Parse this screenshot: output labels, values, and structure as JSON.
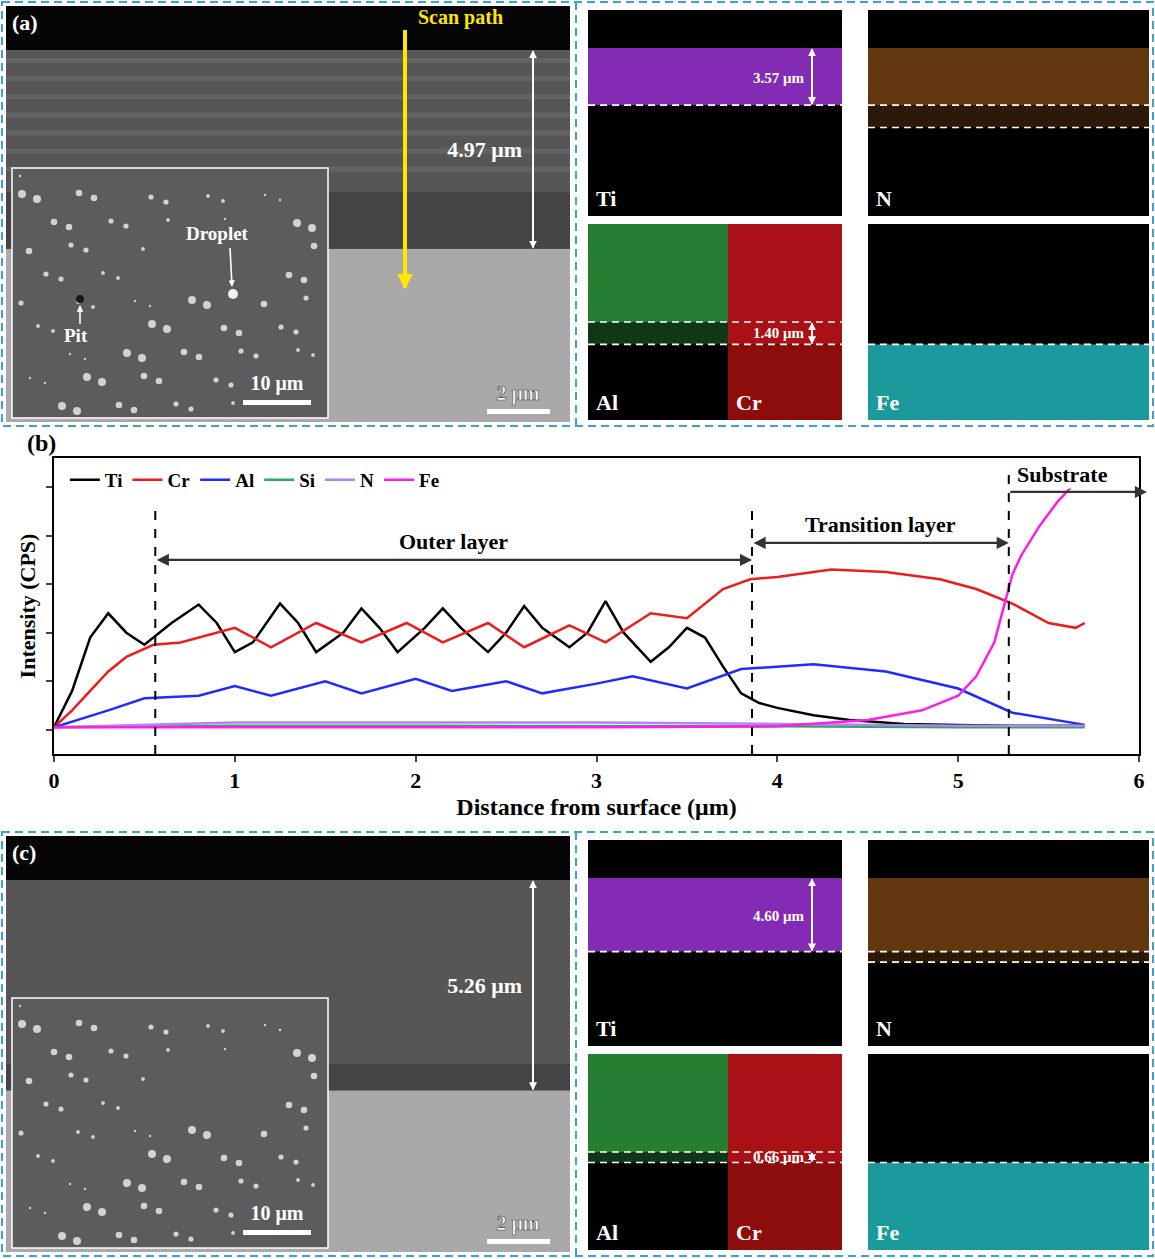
{
  "panels": [
    {
      "label": "(a)",
      "scan_path": "Scan path",
      "coating": {
        "value": 4.97,
        "label": "4.97 μm"
      },
      "scale_bar": "2 μm",
      "inset": {
        "annotations": [
          "Droplet",
          "Pit"
        ],
        "scale_bar": "10 μm"
      },
      "maps": {
        "elements": [
          "Ti",
          "N",
          "Al",
          "Cr",
          "Fe"
        ],
        "outer": {
          "value": 3.57,
          "label": "3.57 μm"
        },
        "transition": {
          "value": 1.4,
          "label": "1.40 μm"
        }
      }
    },
    {
      "label": "(c)",
      "coating": {
        "value": 5.26,
        "label": "5.26 μm"
      },
      "scale_bar": "2 μm",
      "inset": {
        "annotations": [],
        "scale_bar": "10 μm"
      },
      "maps": {
        "elements": [
          "Ti",
          "N",
          "Al",
          "Cr",
          "Fe"
        ],
        "outer": {
          "value": 4.6,
          "label": "4.60 μm"
        },
        "transition": {
          "value": 0.66,
          "label": "0.66 μm"
        }
      }
    }
  ],
  "chart_data": {
    "type": "line",
    "panel_label": "(b)",
    "x_label": "Distance from surface (μm)",
    "y_label": "Intensity (CPS)",
    "xlim": [
      0,
      6
    ],
    "xticks": [
      0,
      1,
      2,
      3,
      4,
      5,
      6
    ],
    "ylim": [
      -0.5,
      5.6
    ],
    "yticks": [
      0,
      1,
      2,
      3,
      4,
      5
    ],
    "tick_labels": "x",
    "grid": false,
    "legend": "upper left",
    "series": [
      {
        "name": "Ti",
        "color": "#000000",
        "x": [
          0,
          0.1,
          0.2,
          0.3,
          0.4,
          0.5,
          0.65,
          0.8,
          0.9,
          1.0,
          1.1,
          1.25,
          1.35,
          1.45,
          1.6,
          1.7,
          1.8,
          1.9,
          2.05,
          2.15,
          2.25,
          2.4,
          2.5,
          2.6,
          2.7,
          2.85,
          2.95,
          3.05,
          3.15,
          3.3,
          3.4,
          3.5,
          3.6,
          3.7,
          3.8,
          3.9,
          4.0,
          4.2,
          4.4,
          4.7,
          5.0,
          5.3,
          5.7
        ],
        "values": [
          0.05,
          0.8,
          1.9,
          2.4,
          2.0,
          1.75,
          2.2,
          2.58,
          2.2,
          1.6,
          1.8,
          2.6,
          2.2,
          1.6,
          2.0,
          2.5,
          2.1,
          1.6,
          2.1,
          2.5,
          2.1,
          1.6,
          2.0,
          2.55,
          2.1,
          1.7,
          2.0,
          2.65,
          2.0,
          1.4,
          1.7,
          2.1,
          1.9,
          1.3,
          0.75,
          0.55,
          0.45,
          0.3,
          0.2,
          0.12,
          0.1,
          0.08,
          0.08
        ]
      },
      {
        "name": "Cr",
        "color": "#ee1c1c",
        "x": [
          0,
          0.1,
          0.2,
          0.3,
          0.4,
          0.55,
          0.7,
          0.8,
          1.0,
          1.2,
          1.45,
          1.7,
          1.95,
          2.15,
          2.4,
          2.6,
          2.85,
          3.05,
          3.3,
          3.5,
          3.7,
          3.85,
          4.0,
          4.3,
          4.6,
          4.9,
          5.1,
          5.3,
          5.5,
          5.65,
          5.7
        ],
        "values": [
          0.05,
          0.4,
          0.8,
          1.2,
          1.5,
          1.75,
          1.8,
          1.9,
          2.1,
          1.7,
          2.2,
          1.8,
          2.2,
          1.8,
          2.2,
          1.7,
          2.15,
          1.8,
          2.4,
          2.3,
          2.9,
          3.1,
          3.15,
          3.3,
          3.25,
          3.1,
          2.9,
          2.6,
          2.2,
          2.1,
          2.2
        ]
      },
      {
        "name": "Al",
        "color": "#1f2bff",
        "x": [
          0,
          0.3,
          0.5,
          0.8,
          1.0,
          1.2,
          1.5,
          1.7,
          2.0,
          2.2,
          2.5,
          2.7,
          3.0,
          3.2,
          3.5,
          3.8,
          4.2,
          4.6,
          5.0,
          5.3,
          5.7
        ],
        "values": [
          0.05,
          0.4,
          0.65,
          0.7,
          0.9,
          0.7,
          1.0,
          0.75,
          1.05,
          0.8,
          1.0,
          0.75,
          0.95,
          1.1,
          0.85,
          1.25,
          1.35,
          1.2,
          0.85,
          0.35,
          0.1
        ]
      },
      {
        "name": "Si",
        "color": "#2ea86a",
        "x": [
          0,
          1,
          2,
          3,
          4,
          5,
          5.7
        ],
        "values": [
          0.05,
          0.08,
          0.08,
          0.08,
          0.07,
          0.05,
          0.05
        ]
      },
      {
        "name": "N",
        "color": "#b383f0",
        "x": [
          0,
          1,
          2,
          3,
          4,
          5,
          5.7
        ],
        "values": [
          0.05,
          0.15,
          0.15,
          0.15,
          0.12,
          0.08,
          0.08
        ]
      },
      {
        "name": "Fe",
        "color": "#ff1ee6",
        "x": [
          0,
          1,
          2,
          3,
          4,
          4.5,
          4.8,
          5.0,
          5.1,
          5.2,
          5.25,
          5.3,
          5.35,
          5.45,
          5.55,
          5.65,
          5.7
        ],
        "values": [
          0.05,
          0.05,
          0.05,
          0.05,
          0.07,
          0.2,
          0.4,
          0.7,
          1.1,
          1.8,
          2.5,
          3.2,
          3.6,
          4.2,
          4.7,
          5.1,
          5.0
        ]
      }
    ],
    "regions": [
      {
        "name": "Outer layer",
        "start": 0.56,
        "end": 3.86
      },
      {
        "name": "Transition layer",
        "start": 3.86,
        "end": 5.28
      },
      {
        "name": "Substrate",
        "start": 5.28
      }
    ]
  }
}
